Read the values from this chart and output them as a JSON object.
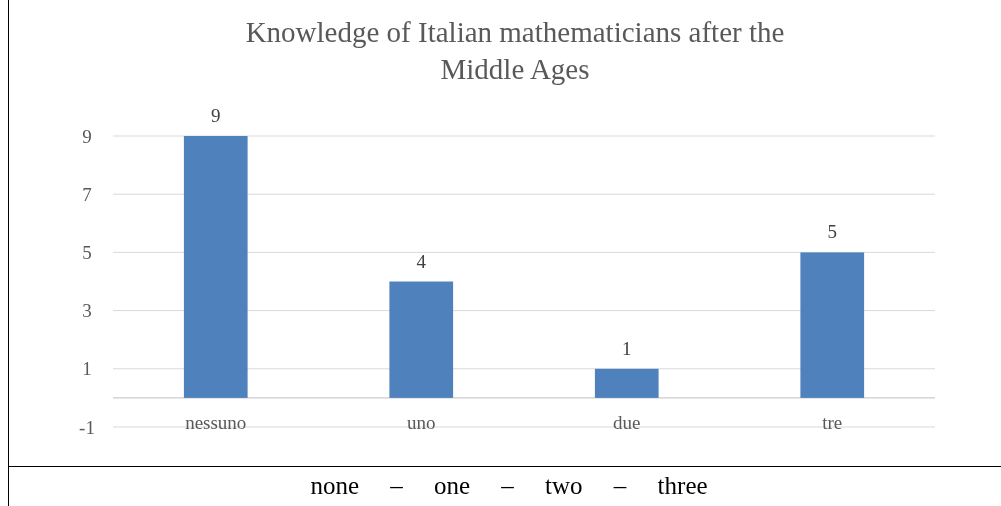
{
  "chart_data": {
    "type": "bar",
    "title": "Knowledge of Italian mathematicians after the Middle Ages",
    "categories": [
      "nessuno",
      "uno",
      "due",
      "tre"
    ],
    "values": [
      9,
      4,
      1,
      5
    ],
    "color": "#4f81bd",
    "ylim": [
      -1,
      9
    ],
    "yticks": [
      -1,
      1,
      3,
      5,
      7,
      9
    ],
    "grid": "y",
    "data_labels": true,
    "annotations": [
      "none     –     one     –     two     –     three"
    ]
  }
}
